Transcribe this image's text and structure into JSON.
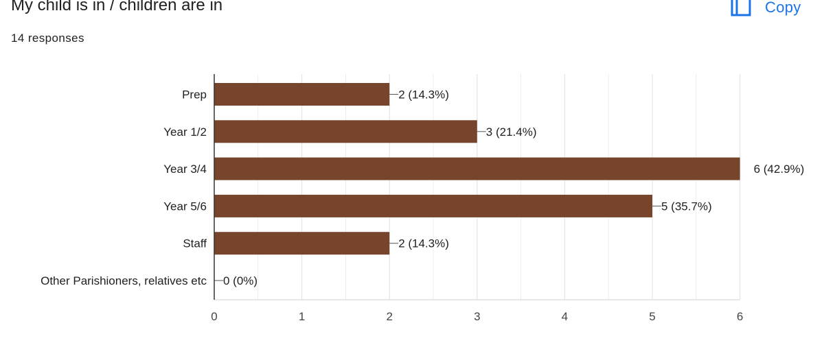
{
  "question": {
    "title": "My child is in / children are in",
    "responses": "14 responses"
  },
  "toolbar": {
    "copy_label": "Copy",
    "copy_icon": "copy-icon"
  },
  "colors": {
    "bar": "#77452b",
    "accent": "#1a73e8",
    "grid": "#e5e5e5",
    "text": "#202124"
  },
  "chart_data": {
    "type": "bar",
    "orientation": "horizontal",
    "categories": [
      "Prep",
      "Year 1/2",
      "Year 3/4",
      "Year 5/6",
      "Staff",
      "Other Parishioners, relatives etc"
    ],
    "values": [
      2,
      3,
      6,
      5,
      2,
      0
    ],
    "labels": [
      "2 (14.3%)",
      "3 (21.4%)",
      "6 (42.9%)",
      "5 (35.7%)",
      "2 (14.3%)",
      "0 (0%)"
    ],
    "x_ticks": [
      0,
      1,
      2,
      3,
      4,
      5,
      6
    ],
    "xlim": [
      0,
      6
    ],
    "grid": true
  }
}
